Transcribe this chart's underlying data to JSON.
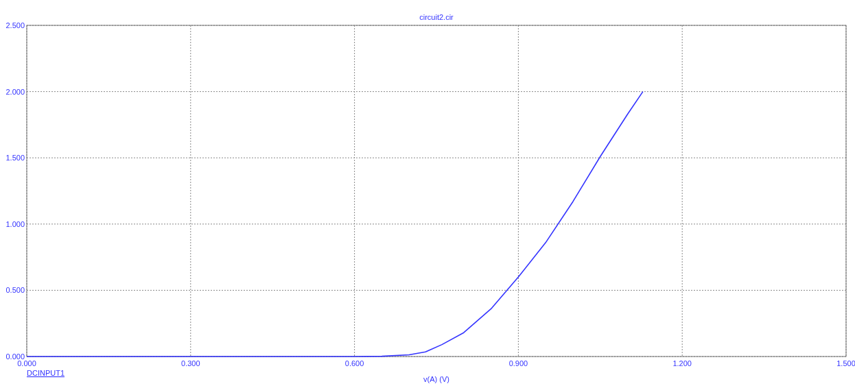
{
  "chart_data": {
    "type": "line",
    "title": "circuit2.cir",
    "xlabel": "v(A) (V)",
    "annotations": [
      "DCINPUT1"
    ],
    "x": [
      0,
      0.6,
      0.65,
      0.7,
      0.73,
      0.76,
      0.8,
      0.85,
      0.9,
      0.95,
      1.0,
      1.05,
      1.1,
      1.128
    ],
    "series": [
      {
        "color": "#3333ff",
        "values": [
          0,
          0,
          0.002,
          0.013,
          0.035,
          0.09,
          0.18,
          0.36,
          0.6,
          0.86,
          1.17,
          1.51,
          1.83,
          2.0
        ]
      }
    ],
    "xlim": [
      0,
      1.5
    ],
    "ylim": [
      0,
      2.5
    ],
    "xticks": [
      {
        "value": 0,
        "label": "0.000"
      },
      {
        "value": 0.3,
        "label": "0.300"
      },
      {
        "value": 0.6,
        "label": "0.600"
      },
      {
        "value": 0.9,
        "label": "0.900"
      },
      {
        "value": 1.2,
        "label": "1.200"
      },
      {
        "value": 1.5,
        "label": "1.500"
      }
    ],
    "yticks": [
      {
        "value": 0,
        "label": "0.000"
      },
      {
        "value": 0.5,
        "label": "0.500"
      },
      {
        "value": 1,
        "label": "1.000"
      },
      {
        "value": 1.5,
        "label": "1.500"
      },
      {
        "value": 2,
        "label": "2.000"
      },
      {
        "value": 2.5,
        "label": "2.500"
      }
    ],
    "grid": true
  }
}
